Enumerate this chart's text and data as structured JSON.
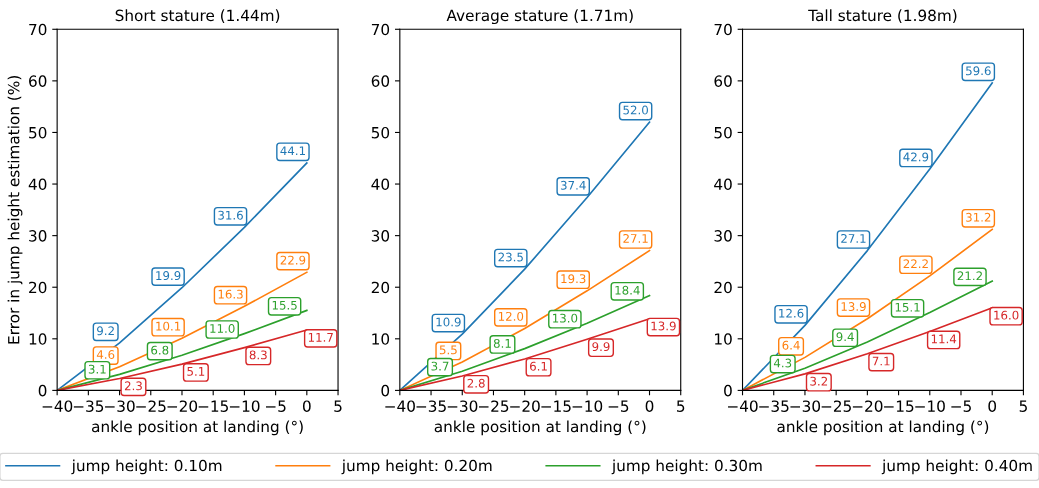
{
  "chart_data": [
    {
      "type": "line",
      "title": "Short stature (1.44m)",
      "xlabel": "ankle position at landing (°)",
      "ylabel": "Error in jump height estimation (%)",
      "x": [
        -40,
        -30,
        -20,
        -10,
        0
      ],
      "xlim": [
        -40,
        5
      ],
      "xticks": [
        {
          "value": -40,
          "label": "−40"
        },
        {
          "value": -35,
          "label": "−35"
        },
        {
          "value": -30,
          "label": "−30"
        },
        {
          "value": -25,
          "label": "−25"
        },
        {
          "value": -20,
          "label": "−20"
        },
        {
          "value": -15,
          "label": "−15"
        },
        {
          "value": -10,
          "label": "−10"
        },
        {
          "value": -5,
          "label": "−5"
        },
        0,
        5
      ],
      "ylim": [
        0,
        70
      ],
      "yticks": [
        0,
        10,
        20,
        30,
        40,
        50,
        60,
        70
      ],
      "grid": false,
      "legend": "bottom",
      "marker": "none",
      "series": [
        {
          "name": "jump height: 0.10m",
          "color": "#1f77b4",
          "values": [
            0,
            9.2,
            19.9,
            31.6,
            44.1
          ],
          "value_labels": [
            null,
            "9.2",
            "19.9",
            "31.6",
            "44.1"
          ]
        },
        {
          "name": "jump height: 0.20m",
          "color": "#ff7f0e",
          "values": [
            0,
            4.6,
            10.1,
            16.3,
            22.9
          ],
          "value_labels": [
            null,
            "4.6",
            "10.1",
            "16.3",
            "22.9"
          ]
        },
        {
          "name": "jump height: 0.30m",
          "color": "#2ca02c",
          "values": [
            0,
            3.1,
            6.8,
            11.0,
            15.5
          ],
          "value_labels": [
            null,
            "3.1",
            "6.8",
            "11.0",
            "15.5"
          ]
        },
        {
          "name": "jump height: 0.40m",
          "color": "#d62728",
          "values": [
            0,
            2.3,
            5.1,
            8.3,
            11.7
          ],
          "value_labels": [
            null,
            "2.3",
            "5.1",
            "8.3",
            "11.7"
          ]
        }
      ]
    },
    {
      "type": "line",
      "title": "Average stature (1.71m)",
      "xlabel": "ankle position at landing (°)",
      "x": [
        -40,
        -30,
        -20,
        -10,
        0
      ],
      "xlim": [
        -40,
        5
      ],
      "xticks": [
        {
          "value": -40,
          "label": "−40"
        },
        {
          "value": -35,
          "label": "−35"
        },
        {
          "value": -30,
          "label": "−30"
        },
        {
          "value": -25,
          "label": "−25"
        },
        {
          "value": -20,
          "label": "−20"
        },
        {
          "value": -15,
          "label": "−15"
        },
        {
          "value": -10,
          "label": "−10"
        },
        {
          "value": -5,
          "label": "−5"
        },
        0,
        5
      ],
      "ylim": [
        0,
        70
      ],
      "yticks": [
        0,
        10,
        20,
        30,
        40,
        50,
        60,
        70
      ],
      "grid": false,
      "marker": "none",
      "series": [
        {
          "color": "#1f77b4",
          "values": [
            0,
            10.9,
            23.5,
            37.4,
            52.0
          ],
          "value_labels": [
            null,
            "10.9",
            "23.5",
            "37.4",
            "52.0"
          ]
        },
        {
          "color": "#ff7f0e",
          "values": [
            0,
            5.5,
            12.0,
            19.3,
            27.1
          ],
          "value_labels": [
            null,
            "5.5",
            "12.0",
            "19.3",
            "27.1"
          ]
        },
        {
          "color": "#2ca02c",
          "values": [
            0,
            3.7,
            8.1,
            13.0,
            18.4
          ],
          "value_labels": [
            null,
            "3.7",
            "8.1",
            "13.0",
            "18.4"
          ]
        },
        {
          "color": "#d62728",
          "values": [
            0,
            2.8,
            6.1,
            9.9,
            13.9
          ],
          "value_labels": [
            null,
            "2.8",
            "6.1",
            "9.9",
            "13.9"
          ]
        }
      ]
    },
    {
      "type": "line",
      "title": "Tall stature (1.98m)",
      "xlabel": "ankle position at landing (°)",
      "x": [
        -40,
        -30,
        -20,
        -10,
        0
      ],
      "xlim": [
        -40,
        5
      ],
      "xticks": [
        {
          "value": -40,
          "label": "−40"
        },
        {
          "value": -35,
          "label": "−35"
        },
        {
          "value": -30,
          "label": "−30"
        },
        {
          "value": -25,
          "label": "−25"
        },
        {
          "value": -20,
          "label": "−20"
        },
        {
          "value": -15,
          "label": "−15"
        },
        {
          "value": -10,
          "label": "−10"
        },
        {
          "value": -5,
          "label": "−5"
        },
        0,
        5
      ],
      "ylim": [
        0,
        70
      ],
      "yticks": [
        0,
        10,
        20,
        30,
        40,
        50,
        60,
        70
      ],
      "grid": false,
      "marker": "none",
      "series": [
        {
          "color": "#1f77b4",
          "values": [
            0,
            12.6,
            27.1,
            42.9,
            59.6
          ],
          "value_labels": [
            null,
            "12.6",
            "27.1",
            "42.9",
            "59.6"
          ]
        },
        {
          "color": "#ff7f0e",
          "values": [
            0,
            6.4,
            13.9,
            22.2,
            31.2
          ],
          "value_labels": [
            null,
            "6.4",
            "13.9",
            "22.2",
            "31.2"
          ]
        },
        {
          "color": "#2ca02c",
          "values": [
            0,
            4.3,
            9.4,
            15.1,
            21.2
          ],
          "value_labels": [
            null,
            "4.3",
            "9.4",
            "15.1",
            "21.2"
          ]
        },
        {
          "color": "#d62728",
          "values": [
            0,
            3.2,
            7.1,
            11.4,
            16.0
          ],
          "value_labels": [
            null,
            "3.2",
            "7.1",
            "11.4",
            "16.0"
          ]
        }
      ]
    }
  ]
}
